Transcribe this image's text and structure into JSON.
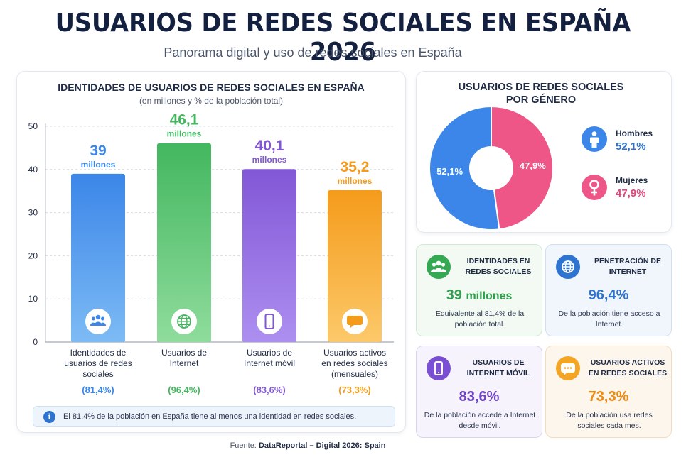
{
  "header": {
    "title": "USUARIOS DE REDES SOCIALES EN ESPAÑA 2026",
    "subtitle": "Panorama digital y uso de redes sociales en España"
  },
  "chart_data": {
    "type": "bar",
    "title": "IDENTIDADES DE USUARIOS DE REDES SOCIALES EN ESPAÑA",
    "subtitle": "(en millones y % de la población total)",
    "categories": [
      "Identidades de usuarios de redes sociales",
      "Usuarios de Internet",
      "Usuarios de Internet móvil",
      "Usuarios activos en redes sociales (mensuales)"
    ],
    "category_lines": [
      [
        "Identidades de",
        "usuarios de redes",
        "sociales"
      ],
      [
        "Usuarios de",
        "Internet"
      ],
      [
        "Usuarios de",
        "Internet móvil"
      ],
      [
        "Usuarios activos",
        "en redes sociales",
        "(mensuales)"
      ]
    ],
    "values": [
      39,
      46.1,
      40.1,
      35.2
    ],
    "value_labels": [
      "39",
      "46,1",
      "40,1",
      "35,2"
    ],
    "unit_label": "millones",
    "percentages": [
      "(81,4%)",
      "(96,4%)",
      "(83,6%)",
      "(73,3%)"
    ],
    "colors": [
      "#3b86e8",
      "#43b75f",
      "#8257d6",
      "#f59b1b"
    ],
    "light_colors": [
      "#7dbbf5",
      "#8fdc9c",
      "#ad8ff0",
      "#fcc96a"
    ],
    "icons": [
      "people-icon",
      "globe-icon",
      "phone-icon",
      "chat-icon"
    ],
    "yticks": [
      0,
      10,
      20,
      30,
      40,
      50
    ],
    "ylim": [
      0,
      50
    ],
    "grid": true
  },
  "info_note": "El 81,4% de la población en España tiene al menos una identidad en redes sociales.",
  "info_icon_glyph": "i",
  "gender": {
    "title_line1": "USUARIOS DE REDES SOCIALES",
    "title_line2": "POR GÉNERO",
    "chart_data": {
      "type": "pie",
      "labels": [
        "Hombres",
        "Mujeres"
      ],
      "values": [
        52.1,
        47.9
      ],
      "value_labels": [
        "52,1%",
        "47,9%"
      ],
      "colors": [
        "#3b86e8",
        "#ef5688"
      ]
    },
    "men_label": "Hombres",
    "men_value": "52,1%",
    "women_label": "Mujeres",
    "women_value": "47,9%"
  },
  "stats": {
    "identities": {
      "title": "IDENTIDADES EN REDES SOCIALES",
      "value": "39",
      "unit": "millones",
      "desc": "Equivalente al 81,4% de la población total.",
      "color": "#2f9e4d",
      "icon": "people-icon"
    },
    "penetration": {
      "title": "PENETRACIÓN DE INTERNET",
      "value": "96,4%",
      "desc": "De la población tiene acceso a Internet.",
      "color": "#2f73d0",
      "icon": "globe-icon"
    },
    "mobile": {
      "title": "USUARIOS DE INTERNET MÓVIL",
      "value": "83,6%",
      "desc": "De la población accede a Internet desde móvil.",
      "color": "#6d45c4",
      "icon": "phone-icon"
    },
    "active": {
      "title": "USUARIOS ACTIVOS EN REDES SOCIALES",
      "value": "73,3%",
      "desc": "De la población usa redes sociales cada mes.",
      "color": "#f08a10",
      "icon": "chat-icon"
    }
  },
  "source": {
    "prefix": "Fuente:",
    "name": "DataReportal – Digital 2026: Spain"
  }
}
